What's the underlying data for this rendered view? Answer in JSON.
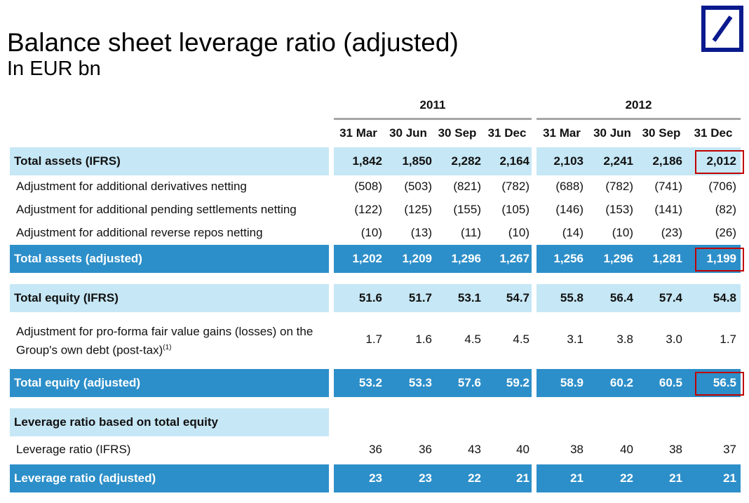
{
  "header": {
    "title": "Balance sheet leverage ratio (adjusted)",
    "subtitle": "In EUR bn"
  },
  "logo": {
    "icon": "deutsche-bank-slash-logo",
    "color": "#0a1a8e"
  },
  "years": [
    "2011",
    "2012"
  ],
  "columns": [
    "31 Mar",
    "30 Jun",
    "30 Sep",
    "31 Dec",
    "31 Mar",
    "30 Jun",
    "30 Sep",
    "31 Dec"
  ],
  "colors": {
    "light_band": "#c6e7f5",
    "dark_band": "#2d8fc9",
    "highlight": "#c00000"
  },
  "rows": [
    {
      "label": "Total assets (IFRS)",
      "style": "light",
      "values": [
        "1,842",
        "1,850",
        "2,282",
        "2,164",
        "2,103",
        "2,241",
        "2,186",
        "2,012"
      ],
      "highlight_last": true
    },
    {
      "label": "Adjustment for additional derivatives netting",
      "style": "plain",
      "values": [
        "(508)",
        "(503)",
        "(821)",
        "(782)",
        "(688)",
        "(782)",
        "(741)",
        "(706)"
      ]
    },
    {
      "label": "Adjustment for additional pending settlements netting",
      "style": "plain",
      "values": [
        "(122)",
        "(125)",
        "(155)",
        "(105)",
        "(146)",
        "(153)",
        "(141)",
        "(82)"
      ]
    },
    {
      "label": "Adjustment for additional reverse repos netting",
      "style": "plain",
      "values": [
        "(10)",
        "(13)",
        "(11)",
        "(10)",
        "(14)",
        "(10)",
        "(23)",
        "(26)"
      ]
    },
    {
      "label": "Total assets (adjusted)",
      "style": "dark",
      "values": [
        "1,202",
        "1,209",
        "1,296",
        "1,267",
        "1,256",
        "1,296",
        "1,281",
        "1,199"
      ],
      "highlight_last": true
    },
    {
      "label": "Total equity (IFRS)",
      "style": "light",
      "values": [
        "51.6",
        "51.7",
        "53.1",
        "54.7",
        "55.8",
        "56.4",
        "57.4",
        "54.8"
      ]
    },
    {
      "label": "Adjustment for pro-forma fair value gains (losses) on the Group's own debt (post-tax)",
      "footnote": "(1)",
      "style": "plain",
      "values": [
        "1.7",
        "1.6",
        "4.5",
        "4.5",
        "3.1",
        "3.8",
        "3.0",
        "1.7"
      ]
    },
    {
      "label": "Total equity (adjusted)",
      "style": "dark",
      "values": [
        "53.2",
        "53.3",
        "57.6",
        "59.2",
        "58.9",
        "60.2",
        "60.5",
        "56.5"
      ],
      "highlight_last": true
    },
    {
      "label": "Leverage ratio based on total equity",
      "style": "light-label",
      "values": []
    },
    {
      "label": "Leverage ratio (IFRS)",
      "style": "plain",
      "values": [
        "36",
        "36",
        "43",
        "40",
        "38",
        "40",
        "38",
        "37"
      ]
    },
    {
      "label": "Leverage ratio (adjusted)",
      "style": "dark",
      "values": [
        "23",
        "23",
        "22",
        "21",
        "21",
        "22",
        "21",
        "21"
      ]
    }
  ]
}
